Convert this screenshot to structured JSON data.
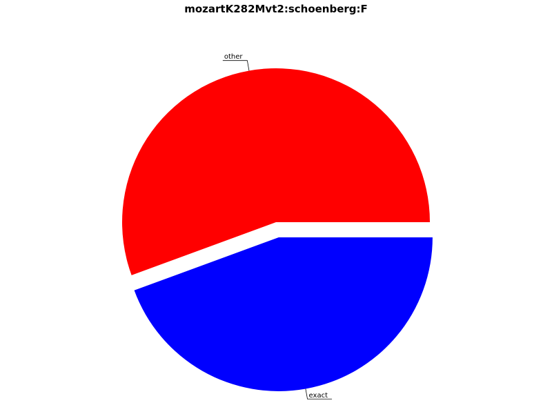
{
  "chart_data": {
    "type": "pie",
    "title": "mozartK282Mvt2:schoenberg:F",
    "slices": [
      {
        "label": "other",
        "value": 55.6,
        "color": "#ff0000",
        "explode": false
      },
      {
        "label": "exact",
        "value": 44.4,
        "color": "#0000ff",
        "explode": true
      }
    ],
    "start_angle_deg": 0,
    "direction": "counterclockwise",
    "legend": "none"
  }
}
